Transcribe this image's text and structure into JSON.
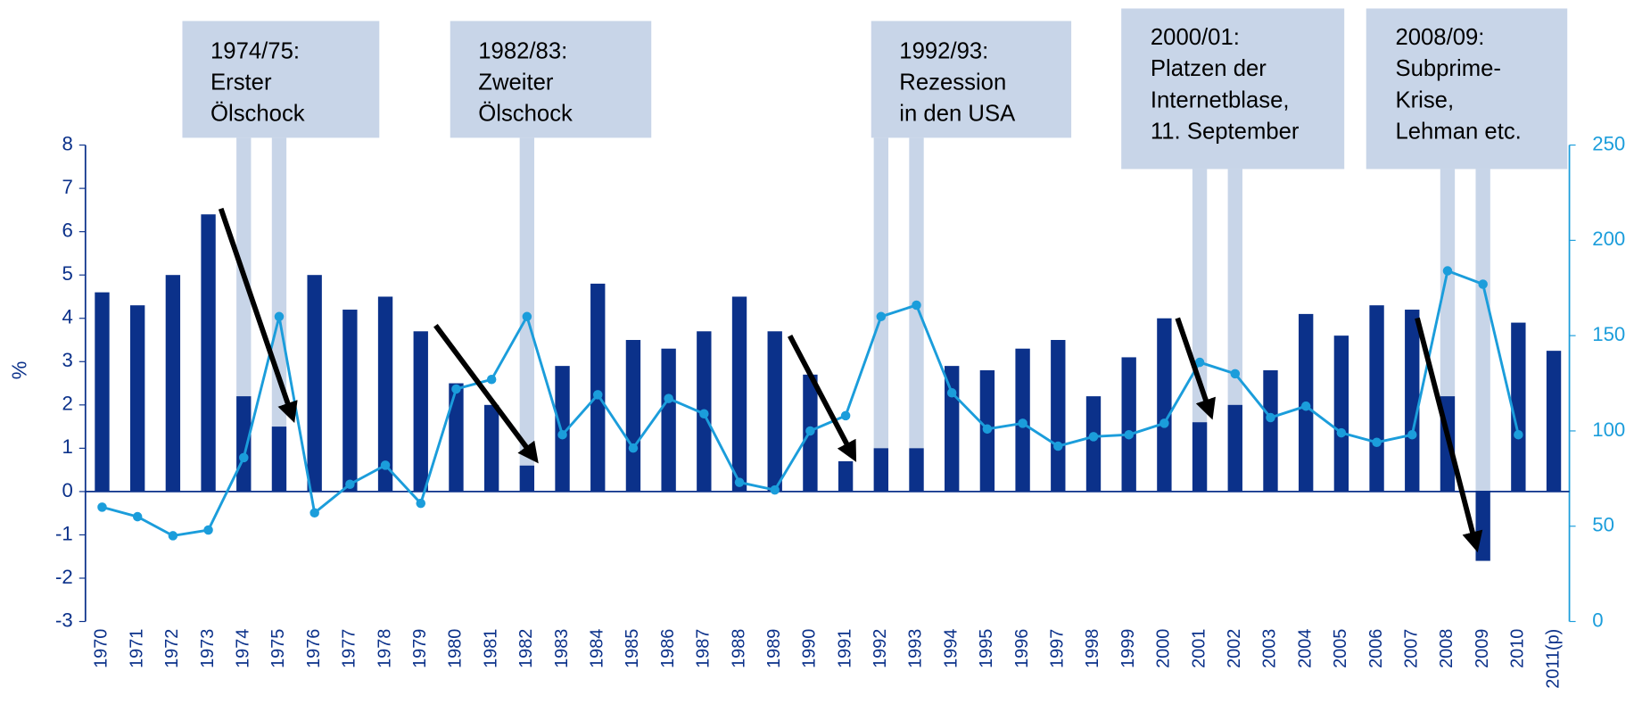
{
  "chart_data": {
    "type": "bar_line",
    "ylabel": "%",
    "categories": [
      "1970",
      "1971",
      "1972",
      "1973",
      "1974",
      "1975",
      "1976",
      "1977",
      "1978",
      "1979",
      "1980",
      "1981",
      "1982",
      "1983",
      "1984",
      "1985",
      "1986",
      "1987",
      "1988",
      "1989",
      "1990",
      "1991",
      "1992",
      "1993",
      "1994",
      "1995",
      "1996",
      "1997",
      "1998",
      "1999",
      "2000",
      "2001",
      "2002",
      "2003",
      "2004",
      "2005",
      "2006",
      "2007",
      "2008",
      "2009",
      "2010",
      "2011(p)"
    ],
    "series": [
      {
        "type": "bar",
        "color": "#0b318a",
        "values": [
          4.6,
          4.3,
          5.0,
          6.4,
          2.2,
          1.5,
          5.0,
          4.2,
          4.5,
          3.7,
          2.5,
          2.0,
          0.6,
          2.9,
          4.8,
          3.5,
          3.3,
          3.7,
          4.5,
          3.7,
          2.7,
          0.7,
          1.0,
          1.0,
          2.9,
          2.8,
          3.3,
          3.5,
          2.2,
          3.1,
          4.0,
          1.6,
          2.0,
          2.8,
          4.1,
          3.6,
          4.3,
          4.2,
          2.2,
          -1.6,
          3.9,
          3.25
        ]
      },
      {
        "type": "line",
        "axis": "y2",
        "color": "#1b9ddb",
        "values": [
          60,
          55,
          45,
          48,
          86,
          160,
          57,
          72,
          82,
          62,
          122,
          127,
          160,
          98,
          119,
          91,
          117,
          109,
          73,
          69,
          100,
          108,
          160,
          166,
          120,
          101,
          104,
          92,
          97,
          98,
          104,
          136,
          130,
          107,
          113,
          99,
          94,
          98,
          184,
          177,
          98,
          null
        ]
      }
    ],
    "ylim": [
      -3,
      8
    ],
    "yticks": [
      -3,
      -2,
      -1,
      0,
      1,
      2,
      3,
      4,
      5,
      6,
      7,
      8
    ],
    "y2lim": [
      0,
      250
    ],
    "y2ticks": [
      0,
      50,
      100,
      150,
      200,
      250
    ],
    "highlight_color": "#c8d5e8",
    "annotations": [
      {
        "lines": [
          "1974/75:",
          "Erster",
          "Ölschock"
        ],
        "years": [
          "1974",
          "1975"
        ]
      },
      {
        "lines": [
          "1982/83:",
          "Zweiter",
          "Ölschock"
        ],
        "years": [
          "1982"
        ]
      },
      {
        "lines": [
          "1992/93:",
          "Rezession",
          "in den USA"
        ],
        "years": [
          "1992",
          "1993"
        ]
      },
      {
        "lines": [
          "2000/01:",
          "Platzen der",
          "Internetblase,",
          "11. September"
        ],
        "years": [
          "2001",
          "2002"
        ]
      },
      {
        "lines": [
          "2008/09:",
          "Subprime-",
          "Krise,",
          "Lehman etc."
        ],
        "years": [
          "2008",
          "2009"
        ]
      }
    ]
  }
}
